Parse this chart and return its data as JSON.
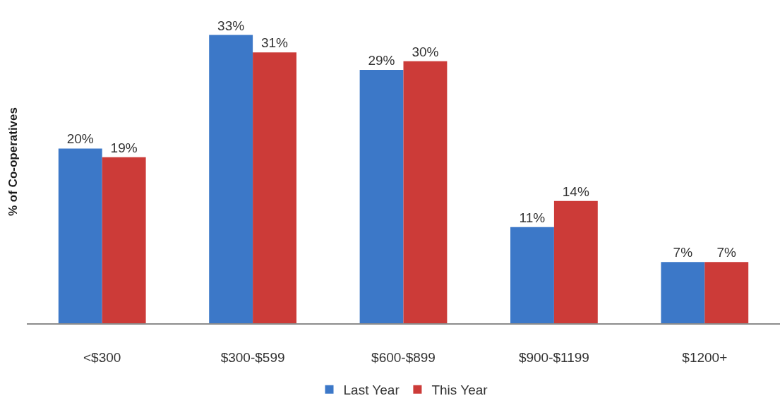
{
  "chart_data": {
    "type": "bar",
    "ylabel": "% of Co-operatives",
    "categories": [
      "<$300",
      "$300-$599",
      "$600-$899",
      "$900-$1199",
      "$1200+"
    ],
    "series": [
      {
        "name": "Last Year",
        "color": "#3c78c8",
        "values": [
          20,
          33,
          29,
          11,
          7
        ],
        "value_labels": [
          "20%",
          "33%",
          "29%",
          "11%",
          "7%"
        ]
      },
      {
        "name": "This Year",
        "color": "#cc3b38",
        "values": [
          19,
          31,
          30,
          14,
          7
        ],
        "value_labels": [
          "19%",
          "31%",
          "30%",
          "14%",
          "7%"
        ]
      }
    ],
    "ylim": [
      0,
      37
    ],
    "tick_labels": "x",
    "legend": "bottom"
  }
}
